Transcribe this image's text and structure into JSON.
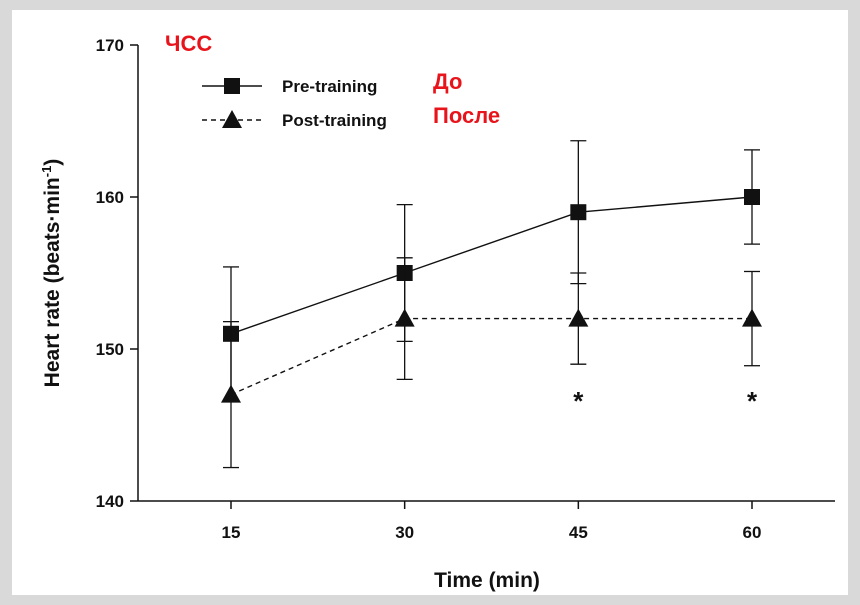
{
  "chart_data": {
    "type": "line",
    "title": "ЧСС",
    "xlabel": "Time (min)",
    "ylabel_main": "Heart rate (beats·min",
    "ylabel_sup": "-1",
    "ylabel_close": ")",
    "x": [
      15,
      30,
      45,
      60
    ],
    "ylim": [
      140,
      170
    ],
    "yticks": [
      140,
      150,
      160,
      170
    ],
    "legend_position": "top-left",
    "grid": false,
    "series": [
      {
        "name": "Pre-training",
        "name_ru": "До",
        "marker": "square",
        "line": "solid",
        "values": [
          151,
          155,
          159,
          160
        ],
        "errors": [
          4.4,
          4.5,
          4.7,
          3.1
        ]
      },
      {
        "name": "Post-training",
        "name_ru": "После",
        "marker": "triangle",
        "line": "dashed",
        "values": [
          147,
          152,
          152,
          152
        ],
        "errors": [
          4.8,
          4.0,
          3.0,
          3.1
        ]
      }
    ],
    "annotations": [
      {
        "text": "*",
        "x": 45
      },
      {
        "text": "*",
        "x": 60
      }
    ],
    "colors": {
      "line": "#111111",
      "ru_text": "#e8141b"
    }
  }
}
